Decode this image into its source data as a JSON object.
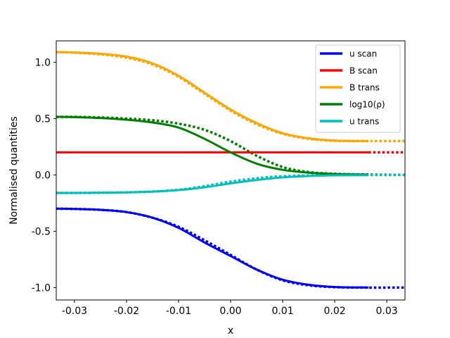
{
  "chart_data": {
    "type": "line",
    "title": "",
    "xlabel": "x",
    "ylabel": "Normalised quantities",
    "xlim": [
      -0.0335,
      0.0335
    ],
    "ylim": [
      -1.11,
      1.19
    ],
    "xticks": [
      -0.03,
      -0.02,
      -0.01,
      0.0,
      0.01,
      0.02,
      0.03
    ],
    "xtick_labels": [
      "-0.03",
      "-0.02",
      "-0.01",
      "0.00",
      "0.01",
      "0.02",
      "0.03"
    ],
    "yticks": [
      -1.0,
      -0.5,
      0.0,
      0.5,
      1.0
    ],
    "ytick_labels": [
      "-1.0",
      "-0.5",
      "0.0",
      "0.5",
      "1.0"
    ],
    "grid": false,
    "legend_position": "top-right",
    "solid_x_end": 0.0265,
    "series": [
      {
        "name": "u scan",
        "color": "#0000ff",
        "x": [
          -0.0335,
          -0.03,
          -0.025,
          -0.02,
          -0.015,
          -0.01,
          -0.005,
          0.0,
          0.005,
          0.01,
          0.015,
          0.02,
          0.0265
        ],
        "values": [
          -0.3,
          -0.302,
          -0.31,
          -0.33,
          -0.38,
          -0.47,
          -0.6,
          -0.72,
          -0.84,
          -0.93,
          -0.975,
          -0.995,
          -1.0
        ]
      },
      {
        "name": "B scan",
        "color": "#ff0000",
        "x": [
          -0.0335,
          0.0265
        ],
        "values": [
          0.2,
          0.2
        ]
      },
      {
        "name": "B trans",
        "color": "#ffa500",
        "x": [
          -0.0335,
          -0.03,
          -0.025,
          -0.02,
          -0.015,
          -0.01,
          -0.005,
          0.0,
          0.005,
          0.01,
          0.015,
          0.02,
          0.0265
        ],
        "values": [
          1.09,
          1.087,
          1.075,
          1.05,
          0.99,
          0.88,
          0.73,
          0.58,
          0.46,
          0.37,
          0.325,
          0.305,
          0.3
        ]
      },
      {
        "name": "log10(ρ)",
        "color": "#008000",
        "x": [
          -0.0335,
          -0.03,
          -0.025,
          -0.02,
          -0.015,
          -0.01,
          -0.005,
          0.0,
          0.005,
          0.01,
          0.015,
          0.02,
          0.0265
        ],
        "values": [
          0.515,
          0.513,
          0.505,
          0.49,
          0.465,
          0.42,
          0.32,
          0.2,
          0.1,
          0.045,
          0.02,
          0.008,
          0.003
        ]
      },
      {
        "name": "u trans",
        "color": "#00bfbf",
        "x": [
          -0.0335,
          -0.03,
          -0.025,
          -0.02,
          -0.015,
          -0.01,
          -0.005,
          0.0,
          0.005,
          0.01,
          0.015,
          0.02,
          0.0265
        ],
        "values": [
          -0.16,
          -0.16,
          -0.158,
          -0.155,
          -0.148,
          -0.135,
          -0.11,
          -0.075,
          -0.045,
          -0.022,
          -0.01,
          -0.004,
          -0.002
        ]
      }
    ],
    "dotted_series": [
      {
        "color": "#0000ff",
        "x": [
          -0.0335,
          -0.03,
          -0.025,
          -0.02,
          -0.015,
          -0.01,
          -0.005,
          0.0,
          0.005,
          0.01,
          0.015,
          0.02,
          0.025,
          0.0335
        ],
        "values": [
          -0.3,
          -0.302,
          -0.31,
          -0.33,
          -0.38,
          -0.46,
          -0.58,
          -0.71,
          -0.84,
          -0.935,
          -0.98,
          -0.996,
          -1.0,
          -1.0
        ]
      },
      {
        "color": "#ff0000",
        "x": [
          0.0265,
          0.0335
        ],
        "values": [
          0.2,
          0.2
        ]
      },
      {
        "color": "#ffa500",
        "x": [
          -0.0335,
          -0.03,
          -0.025,
          -0.02,
          -0.015,
          -0.01,
          -0.005,
          0.0,
          0.005,
          0.01,
          0.015,
          0.02,
          0.025,
          0.0335
        ],
        "values": [
          1.09,
          1.085,
          1.07,
          1.04,
          0.98,
          0.87,
          0.72,
          0.57,
          0.45,
          0.365,
          0.32,
          0.303,
          0.3,
          0.3
        ]
      },
      {
        "color": "#008000",
        "x": [
          -0.0335,
          -0.03,
          -0.025,
          -0.02,
          -0.015,
          -0.01,
          -0.005,
          0.0,
          0.005,
          0.01,
          0.015,
          0.02,
          0.025,
          0.0335
        ],
        "values": [
          0.515,
          0.515,
          0.51,
          0.5,
          0.485,
          0.455,
          0.4,
          0.3,
          0.17,
          0.07,
          0.025,
          0.01,
          0.004,
          0.0
        ]
      },
      {
        "color": "#00bfbf",
        "x": [
          -0.0335,
          -0.03,
          -0.025,
          -0.02,
          -0.015,
          -0.01,
          -0.005,
          0.0,
          0.005,
          0.01,
          0.015,
          0.02,
          0.025,
          0.0335
        ],
        "values": [
          -0.16,
          -0.16,
          -0.158,
          -0.155,
          -0.148,
          -0.132,
          -0.1,
          -0.06,
          -0.03,
          -0.012,
          -0.005,
          -0.002,
          -0.001,
          0.0
        ]
      }
    ]
  }
}
